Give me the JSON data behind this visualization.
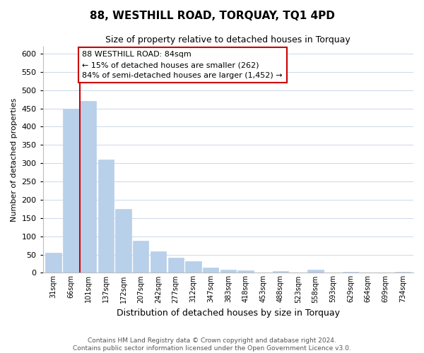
{
  "title": "88, WESTHILL ROAD, TORQUAY, TQ1 4PD",
  "subtitle": "Size of property relative to detached houses in Torquay",
  "xlabel": "Distribution of detached houses by size in Torquay",
  "ylabel": "Number of detached properties",
  "bar_labels": [
    "31sqm",
    "66sqm",
    "101sqm",
    "137sqm",
    "172sqm",
    "207sqm",
    "242sqm",
    "277sqm",
    "312sqm",
    "347sqm",
    "383sqm",
    "418sqm",
    "453sqm",
    "488sqm",
    "523sqm",
    "558sqm",
    "593sqm",
    "629sqm",
    "664sqm",
    "699sqm",
    "734sqm"
  ],
  "bar_values": [
    55,
    450,
    470,
    310,
    175,
    88,
    58,
    42,
    32,
    15,
    8,
    6,
    1,
    5,
    1,
    8,
    0,
    3,
    0,
    0,
    2
  ],
  "bar_color": "#b8d0ea",
  "bar_edge_color": "#b8d0ea",
  "marker_line_color": "#cc0000",
  "annotation_line1": "88 WESTHILL ROAD: 84sqm",
  "annotation_line2": "← 15% of detached houses are smaller (262)",
  "annotation_line3": "84% of semi-detached houses are larger (1,452) →",
  "annotation_box_color": "#ffffff",
  "annotation_box_edge": "#cc0000",
  "ylim": [
    0,
    620
  ],
  "yticks": [
    0,
    50,
    100,
    150,
    200,
    250,
    300,
    350,
    400,
    450,
    500,
    550,
    600
  ],
  "footer1": "Contains HM Land Registry data © Crown copyright and database right 2024.",
  "footer2": "Contains public sector information licensed under the Open Government Licence v3.0.",
  "bg_color": "#ffffff",
  "grid_color": "#ccd8e8"
}
